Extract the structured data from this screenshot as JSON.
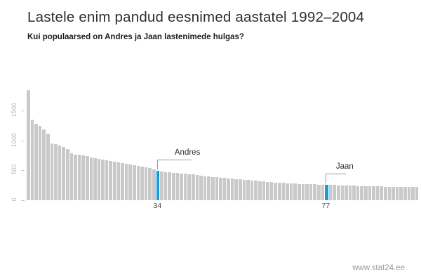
{
  "header": {
    "title": "Lastele enim pandud eesnimed aastatel 1992–2004",
    "subtitle": "Kui populaarsed on Andres ja Jaan lastenimede hulgas?"
  },
  "footer": {
    "site": "www.stat24.ee"
  },
  "chart_data": {
    "type": "bar",
    "title": "Lastele enim pandud eesnimed aastatel 1992–2004",
    "subtitle": "Kui populaarsed on Andres ja Jaan lastenimede hulgas?",
    "xlabel": "",
    "ylabel": "",
    "yticks": [
      0,
      500,
      1000,
      1500
    ],
    "ylim": [
      0,
      1950
    ],
    "grid": false,
    "legend": "none",
    "bar_color": "#c9c9c9",
    "highlight_color": "#189cd8",
    "leader_color": "#9a9a9a",
    "values": [
      1850,
      1360,
      1280,
      1245,
      1185,
      1120,
      960,
      945,
      920,
      890,
      860,
      790,
      772,
      768,
      755,
      740,
      722,
      710,
      700,
      688,
      676,
      664,
      652,
      640,
      628,
      616,
      604,
      592,
      580,
      568,
      556,
      540,
      515,
      490,
      480,
      475,
      470,
      465,
      458,
      452,
      446,
      440,
      432,
      425,
      418,
      405,
      398,
      391,
      385,
      379,
      373,
      367,
      361,
      355,
      349,
      343,
      337,
      331,
      325,
      319,
      313,
      308,
      303,
      298,
      294,
      290,
      286,
      282,
      278,
      275,
      272,
      270,
      268,
      266,
      264,
      262,
      258,
      256,
      254,
      252,
      250,
      248,
      246,
      244,
      242,
      240,
      238,
      236,
      234,
      232,
      231,
      230,
      229,
      228,
      227,
      226,
      225,
      224,
      223,
      222
    ],
    "highlights": [
      {
        "rank": 34,
        "label": "Andres",
        "rank_text": "34"
      },
      {
        "rank": 77,
        "label": "Jaan",
        "rank_text": "77"
      }
    ]
  }
}
